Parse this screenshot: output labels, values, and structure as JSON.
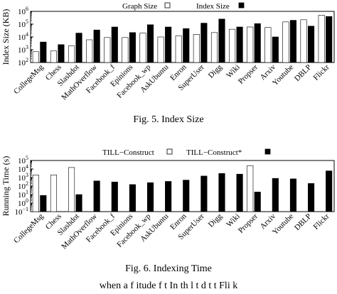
{
  "figures": [
    {
      "caption": "Fig. 5.   Index Size"
    },
    {
      "caption": "Fig. 6.   Indexing Time"
    }
  ],
  "footer_text": "when a f       itude f  t    In th   l   t  d t    t   Fli k",
  "chart_data": [
    {
      "type": "bar",
      "title": "",
      "xlabel": "",
      "ylabel": "Index Size (KB)",
      "scale": "log",
      "ylim": [
        100,
        1000000
      ],
      "yticks": [
        "10",
        "10",
        "10",
        "10",
        "10"
      ],
      "ytick_exponents": [
        "2",
        "3",
        "4",
        "5",
        "6"
      ],
      "ytick_values": [
        100,
        1000,
        10000,
        100000,
        1000000
      ],
      "legend_position": "top",
      "categories": [
        "CollegeMsg",
        "Chess",
        "Slashdot",
        "MathOverflow",
        "Facebook_f",
        "Epinions",
        "Facebook_wp",
        "AskUbuntu",
        "Enron",
        "SuperUser",
        "Digg",
        "Wiki",
        "Propser",
        "Arxiv",
        "Youtube",
        "DBLP",
        "Flickr"
      ],
      "series": [
        {
          "name": "Graph Size",
          "fill": "#ffffff",
          "values": [
            700,
            800,
            2000,
            6000,
            9000,
            9000,
            20000,
            10000,
            12000,
            16000,
            22000,
            40000,
            60000,
            55000,
            150000,
            220000,
            500000
          ]
        },
        {
          "name": "Index Size",
          "fill": "#000000",
          "values": [
            4000,
            2500,
            20000,
            35000,
            60000,
            22000,
            90000,
            60000,
            45000,
            120000,
            250000,
            60000,
            110000,
            10000,
            200000,
            70000,
            400000
          ]
        }
      ]
    },
    {
      "type": "bar",
      "title": "",
      "xlabel": "",
      "ylabel": "Running Time (s)",
      "scale": "log",
      "ylim": [
        0.1,
        100000
      ],
      "yticks": [
        "10",
        "10",
        "10",
        "10",
        "10",
        "10",
        "10"
      ],
      "ytick_exponents": [
        "−1",
        "0",
        "1",
        "2",
        "3",
        "4",
        "5"
      ],
      "ytick_values": [
        0.1,
        1,
        10,
        100,
        1000,
        10000,
        100000
      ],
      "legend_position": "top",
      "categories": [
        "CollegeMsg",
        "Chess",
        "Slashdot",
        "MathOverflow",
        "Facebook_f",
        "Epinions",
        "Facebook_wp",
        "AskUbuntu",
        "Enron",
        "SuperUser",
        "Digg",
        "Wiki",
        "Propser",
        "Arxiv",
        "Youtube",
        "DBLP",
        "Flickr"
      ],
      "series": [
        {
          "name": "TILL−Construct",
          "fill": "#ffffff",
          "values": [
            2000,
            2000,
            15000,
            null,
            null,
            null,
            null,
            null,
            null,
            null,
            null,
            null,
            25000,
            null,
            null,
            null,
            null
          ]
        },
        {
          "name": "TILL−Construct*",
          "fill": "#000000",
          "values": [
            8,
            null,
            10,
            400,
            300,
            150,
            250,
            350,
            500,
            1500,
            3000,
            2500,
            20,
            800,
            700,
            200,
            6000
          ]
        }
      ]
    }
  ]
}
